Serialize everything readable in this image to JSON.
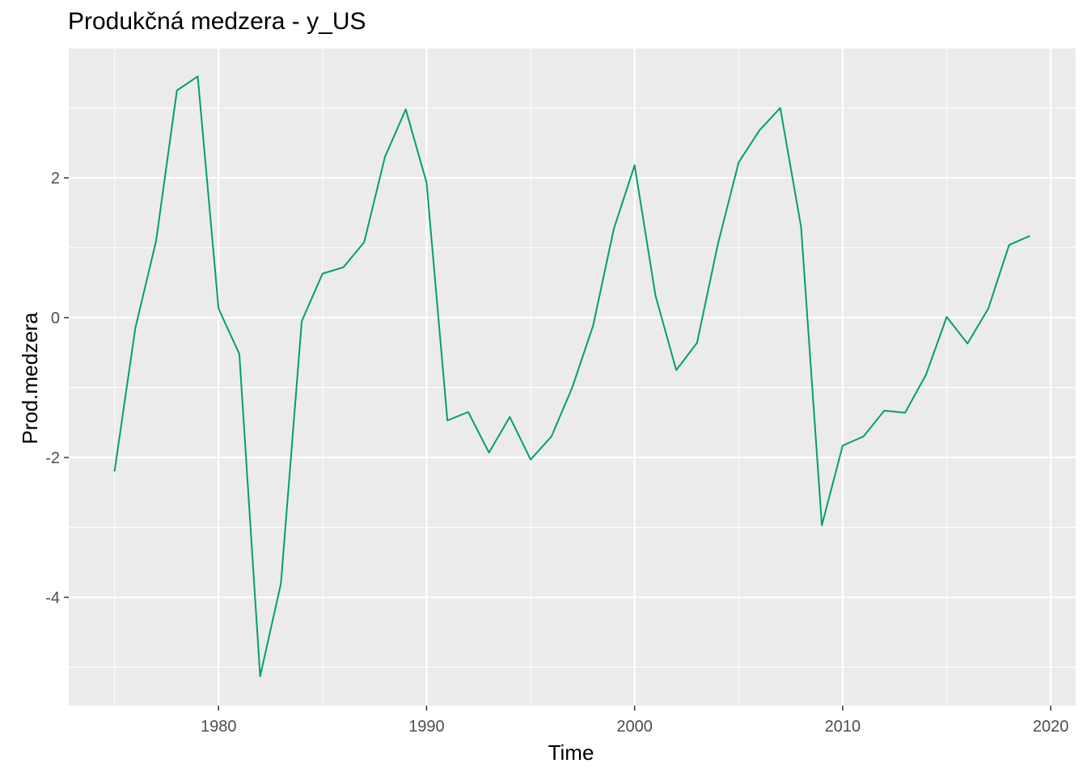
{
  "chart_data": {
    "type": "line",
    "title": "Produkčná medzera - y_US",
    "xlabel": "Time",
    "ylabel": "Prod.medzera",
    "xlim": [
      1972.8,
      2021.2
    ],
    "ylim": [
      -5.55,
      3.85
    ],
    "x_ticks": [
      1980,
      1990,
      2000,
      2010,
      2020
    ],
    "x_tick_labels": [
      "1980",
      "1990",
      "2000",
      "2010",
      "2020"
    ],
    "y_ticks": [
      -4,
      -2,
      0,
      2
    ],
    "y_tick_labels": [
      "-4",
      "-2",
      "0",
      "2"
    ],
    "grid": true,
    "background_color": "#ebebeb",
    "grid_color": "#ffffff",
    "series": [
      {
        "color": "#009E73",
        "x": [
          1975,
          1976,
          1977,
          1978,
          1979,
          1980,
          1981,
          1982,
          1983,
          1984,
          1985,
          1986,
          1987,
          1988,
          1989,
          1990,
          1991,
          1992,
          1993,
          1994,
          1995,
          1996,
          1997,
          1998,
          1999,
          2000,
          2001,
          2002,
          2003,
          2004,
          2005,
          2006,
          2007,
          2008,
          2009,
          2010,
          2011,
          2012,
          2013,
          2014,
          2015,
          2016,
          2017,
          2018,
          2019
        ],
        "values": [
          -2.2,
          -0.15,
          1.1,
          3.25,
          3.45,
          0.13,
          -0.52,
          -5.13,
          -3.8,
          -0.05,
          0.63,
          0.72,
          1.08,
          2.3,
          2.98,
          1.93,
          -1.47,
          -1.35,
          -1.93,
          -1.42,
          -2.03,
          -1.7,
          -1.0,
          -0.12,
          1.27,
          2.18,
          0.32,
          -0.75,
          -0.36,
          1.05,
          2.22,
          2.68,
          3.0,
          1.3,
          -2.97,
          -1.83,
          -1.7,
          -1.33,
          -1.36,
          -0.82,
          0.01,
          -0.37,
          0.13,
          1.04,
          1.17
        ]
      }
    ]
  }
}
